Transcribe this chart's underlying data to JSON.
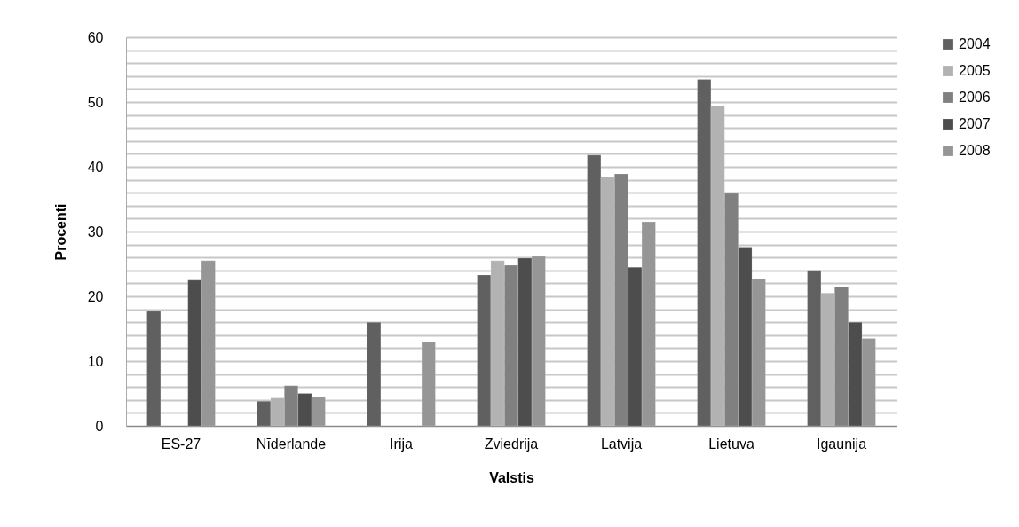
{
  "chart_data": {
    "type": "bar",
    "xlabel": "Valstis",
    "ylabel": "Procenti",
    "categories": [
      "ES-27",
      "Nīderlande",
      "Īrija",
      "Zviedrija",
      "Latvija",
      "Lietuva",
      "Igaunija"
    ],
    "series": [
      {
        "name": "2004",
        "color": "#606060",
        "values": [
          17.7,
          3.8,
          16,
          23.3,
          41.8,
          53.5,
          24
        ]
      },
      {
        "name": "2005",
        "color": "#b2b2b2",
        "values": [
          null,
          4.3,
          null,
          25.5,
          38.5,
          49.4,
          20.5
        ]
      },
      {
        "name": "2006",
        "color": "#808080",
        "values": [
          null,
          6.2,
          null,
          24.8,
          38.9,
          35.9,
          21.5
        ]
      },
      {
        "name": "2007",
        "color": "#4d4d4d",
        "values": [
          22.5,
          5.0,
          null,
          25.9,
          24.5,
          27.6,
          16
        ]
      },
      {
        "name": "2008",
        "color": "#969696",
        "values": [
          25.5,
          4.5,
          13,
          26.2,
          31.5,
          22.7,
          13.5
        ]
      }
    ],
    "ylim": [
      0,
      60
    ],
    "yticks": [
      0,
      {
        "value": 2,
        "label": null
      },
      {
        "value": 4,
        "label": null
      },
      {
        "value": 6,
        "label": null
      },
      {
        "value": 8,
        "label": null
      },
      10,
      {
        "value": 12,
        "label": null
      },
      {
        "value": 14,
        "label": null
      },
      {
        "value": 16,
        "label": null
      },
      {
        "value": 18,
        "label": null
      },
      20,
      {
        "value": 22,
        "label": null
      },
      {
        "value": 24,
        "label": null
      },
      {
        "value": 26,
        "label": null
      },
      {
        "value": 28,
        "label": null
      },
      30,
      {
        "value": 32,
        "label": null
      },
      {
        "value": 34,
        "label": null
      },
      {
        "value": 36,
        "label": null
      },
      {
        "value": 38,
        "label": null
      },
      40,
      {
        "value": 42,
        "label": null
      },
      {
        "value": 44,
        "label": null
      },
      {
        "value": 46,
        "label": null
      },
      {
        "value": 48,
        "label": null
      },
      50,
      {
        "value": 52,
        "label": null
      },
      {
        "value": 54,
        "label": null
      },
      {
        "value": 56,
        "label": null
      },
      {
        "value": 58,
        "label": null
      },
      60
    ],
    "grid": "y",
    "legend": "right"
  }
}
